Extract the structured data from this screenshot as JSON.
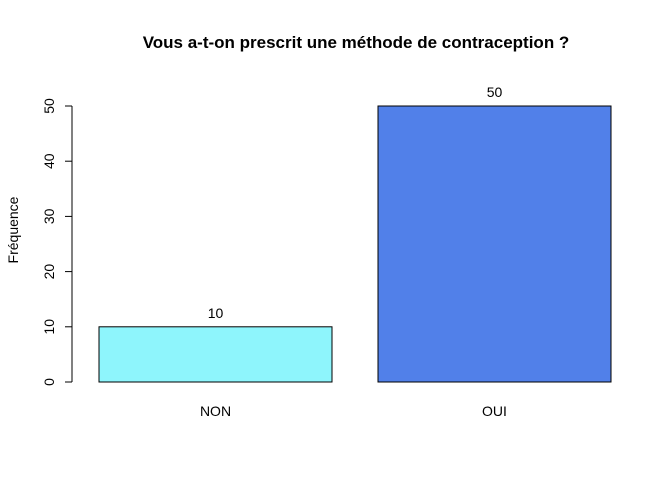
{
  "chart_data": {
    "type": "bar",
    "title": "Vous a-t-on prescrit une méthode de contraception ?",
    "xlabel": "",
    "ylabel": "Fréquence",
    "categories": [
      "NON",
      "OUI"
    ],
    "values": [
      10,
      50
    ],
    "data_labels": [
      "10",
      "50"
    ],
    "bar_colors": [
      "#8ef5fc",
      "#5180e9"
    ],
    "ylim": [
      0,
      50
    ],
    "yticks": [
      0,
      10,
      20,
      30,
      40,
      50
    ],
    "grid": false,
    "legend": "none"
  }
}
